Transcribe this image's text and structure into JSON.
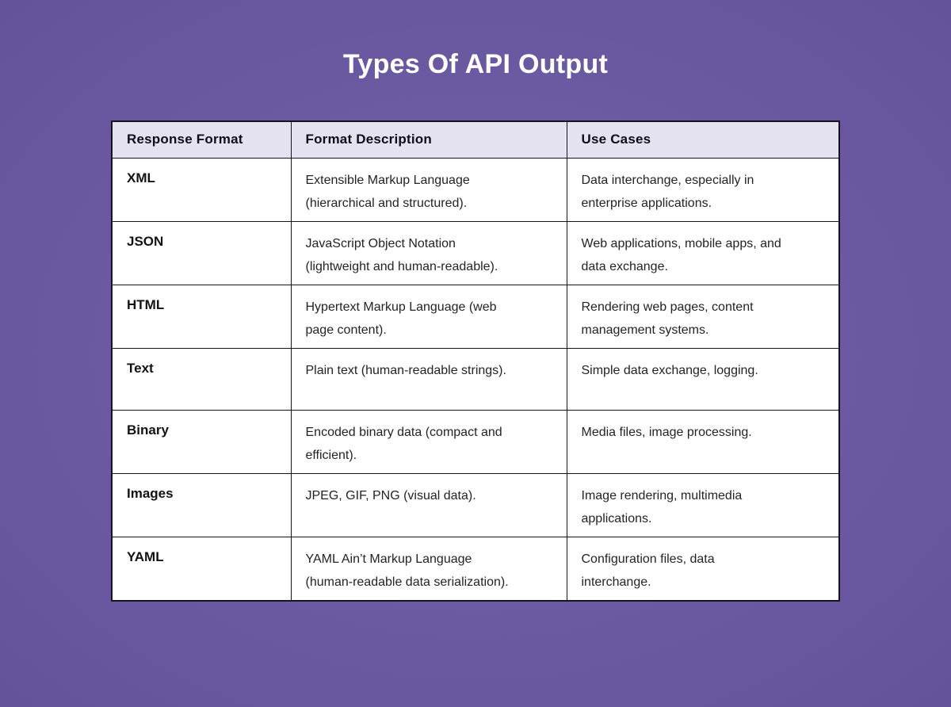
{
  "theme": {
    "background_purple": "#6B59A1",
    "table_border": "#16121E",
    "header_background": "#E4E1F0",
    "cell_background": "#FFFFFF",
    "title_color": "#FFFFFF",
    "body_text_color": "#232328"
  },
  "chart_data": {
    "type": "table",
    "title": "Types Of API Output",
    "columns": [
      "Response Format",
      "Format Description",
      "Use Cases"
    ],
    "rows": [
      {
        "format": "XML",
        "description": "Extensible Markup Language (hierarchical and structured).",
        "use_cases": "Data interchange, especially in enterprise applications."
      },
      {
        "format": "JSON",
        "description": "JavaScript Object Notation (lightweight and human-readable).",
        "use_cases": "Web applications, mobile apps, and data exchange."
      },
      {
        "format": "HTML",
        "description": "Hypertext Markup Language (web page content).",
        "use_cases": "Rendering web pages, content management systems."
      },
      {
        "format": "Text",
        "description": "Plain text (human-readable strings).",
        "use_cases": "Simple data exchange, logging."
      },
      {
        "format": "Binary",
        "description": "Encoded binary data (compact and efficient).",
        "use_cases": "Media files, image processing."
      },
      {
        "format": "Images",
        "description": "JPEG, GIF, PNG (visual data).",
        "use_cases": "Image rendering, multimedia applications."
      },
      {
        "format": "YAML",
        "description": "YAML Ain’t Markup Language (human-readable data serialization).",
        "use_cases": "Configuration files, data interchange."
      }
    ]
  }
}
